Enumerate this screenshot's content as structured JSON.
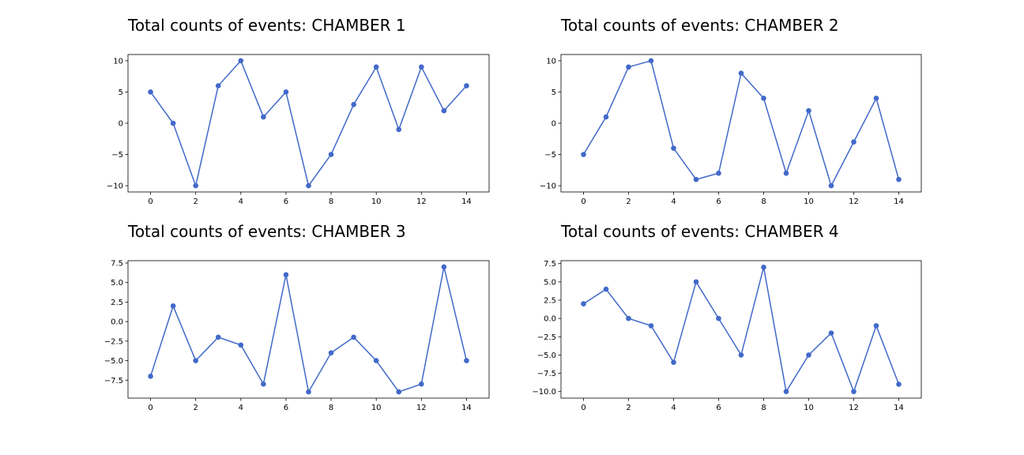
{
  "chart_data": [
    {
      "type": "line",
      "title": "Total counts of events: CHAMBER 1",
      "x": [
        0,
        1,
        2,
        3,
        4,
        5,
        6,
        7,
        8,
        9,
        10,
        11,
        12,
        13,
        14
      ],
      "series": [
        {
          "values": [
            5,
            0,
            -10,
            6,
            10,
            1,
            5,
            -10,
            -5,
            3,
            9,
            -1,
            9,
            2,
            6
          ],
          "color": "#4169c9",
          "marker": "circle"
        }
      ],
      "xlim": [
        -1,
        15
      ],
      "ylim": [
        -11,
        11
      ],
      "xticks": [
        0,
        2,
        4,
        6,
        8,
        10,
        12,
        14
      ],
      "yticks": [
        -10,
        -5,
        0,
        5,
        10
      ],
      "yticklabels": [
        "−10",
        "−5",
        "0",
        "5",
        "10"
      ],
      "grid": false
    },
    {
      "type": "line",
      "title": "Total counts of events: CHAMBER 2",
      "x": [
        0,
        1,
        2,
        3,
        4,
        5,
        6,
        7,
        8,
        9,
        10,
        11,
        12,
        13,
        14
      ],
      "series": [
        {
          "values": [
            -5,
            1,
            9,
            10,
            -4,
            -9,
            -8,
            8,
            4,
            -8,
            2,
            -10,
            -3,
            4,
            -9
          ],
          "color": "#4169c9",
          "marker": "circle"
        }
      ],
      "xlim": [
        -1,
        15
      ],
      "ylim": [
        -11,
        11
      ],
      "xticks": [
        0,
        2,
        4,
        6,
        8,
        10,
        12,
        14
      ],
      "yticks": [
        -10,
        -5,
        0,
        5,
        10
      ],
      "yticklabels": [
        "−10",
        "−5",
        "0",
        "5",
        "10"
      ],
      "grid": false
    },
    {
      "type": "line",
      "title": "Total counts of events: CHAMBER 3",
      "x": [
        0,
        1,
        2,
        3,
        4,
        5,
        6,
        7,
        8,
        9,
        10,
        11,
        12,
        13,
        14
      ],
      "series": [
        {
          "values": [
            -7,
            2,
            -5,
            -2,
            -3,
            -8,
            6,
            -9,
            -4,
            -2,
            -5,
            -9,
            -8,
            7,
            -5
          ],
          "color": "#4169c9",
          "marker": "circle"
        }
      ],
      "xlim": [
        -1,
        15
      ],
      "ylim": [
        -9.8,
        7.8
      ],
      "xticks": [
        0,
        2,
        4,
        6,
        8,
        10,
        12,
        14
      ],
      "yticks": [
        -7.5,
        -5,
        -2.5,
        0,
        2.5,
        5,
        7.5
      ],
      "yticklabels": [
        "−7.5",
        "−5.0",
        "−2.5",
        "0.0",
        "2.5",
        "5.0",
        "7.5"
      ],
      "grid": false
    },
    {
      "type": "line",
      "title": "Total counts of events: CHAMBER 4",
      "x": [
        0,
        1,
        2,
        3,
        4,
        5,
        6,
        7,
        8,
        9,
        10,
        11,
        12,
        13,
        14
      ],
      "series": [
        {
          "values": [
            2,
            4,
            0,
            -1,
            -6,
            5,
            0,
            -5,
            7,
            -10,
            -5,
            -2,
            -10,
            -1,
            -9
          ],
          "color": "#4169c9",
          "marker": "circle"
        }
      ],
      "xlim": [
        -1,
        15
      ],
      "ylim": [
        -10.9,
        7.9
      ],
      "xticks": [
        0,
        2,
        4,
        6,
        8,
        10,
        12,
        14
      ],
      "yticks": [
        -10,
        -7.5,
        -5,
        -2.5,
        0,
        2.5,
        5,
        7.5
      ],
      "yticklabels": [
        "−10.0",
        "−7.5",
        "−5.0",
        "−2.5",
        "0.0",
        "2.5",
        "5.0",
        "7.5"
      ],
      "grid": false
    }
  ]
}
